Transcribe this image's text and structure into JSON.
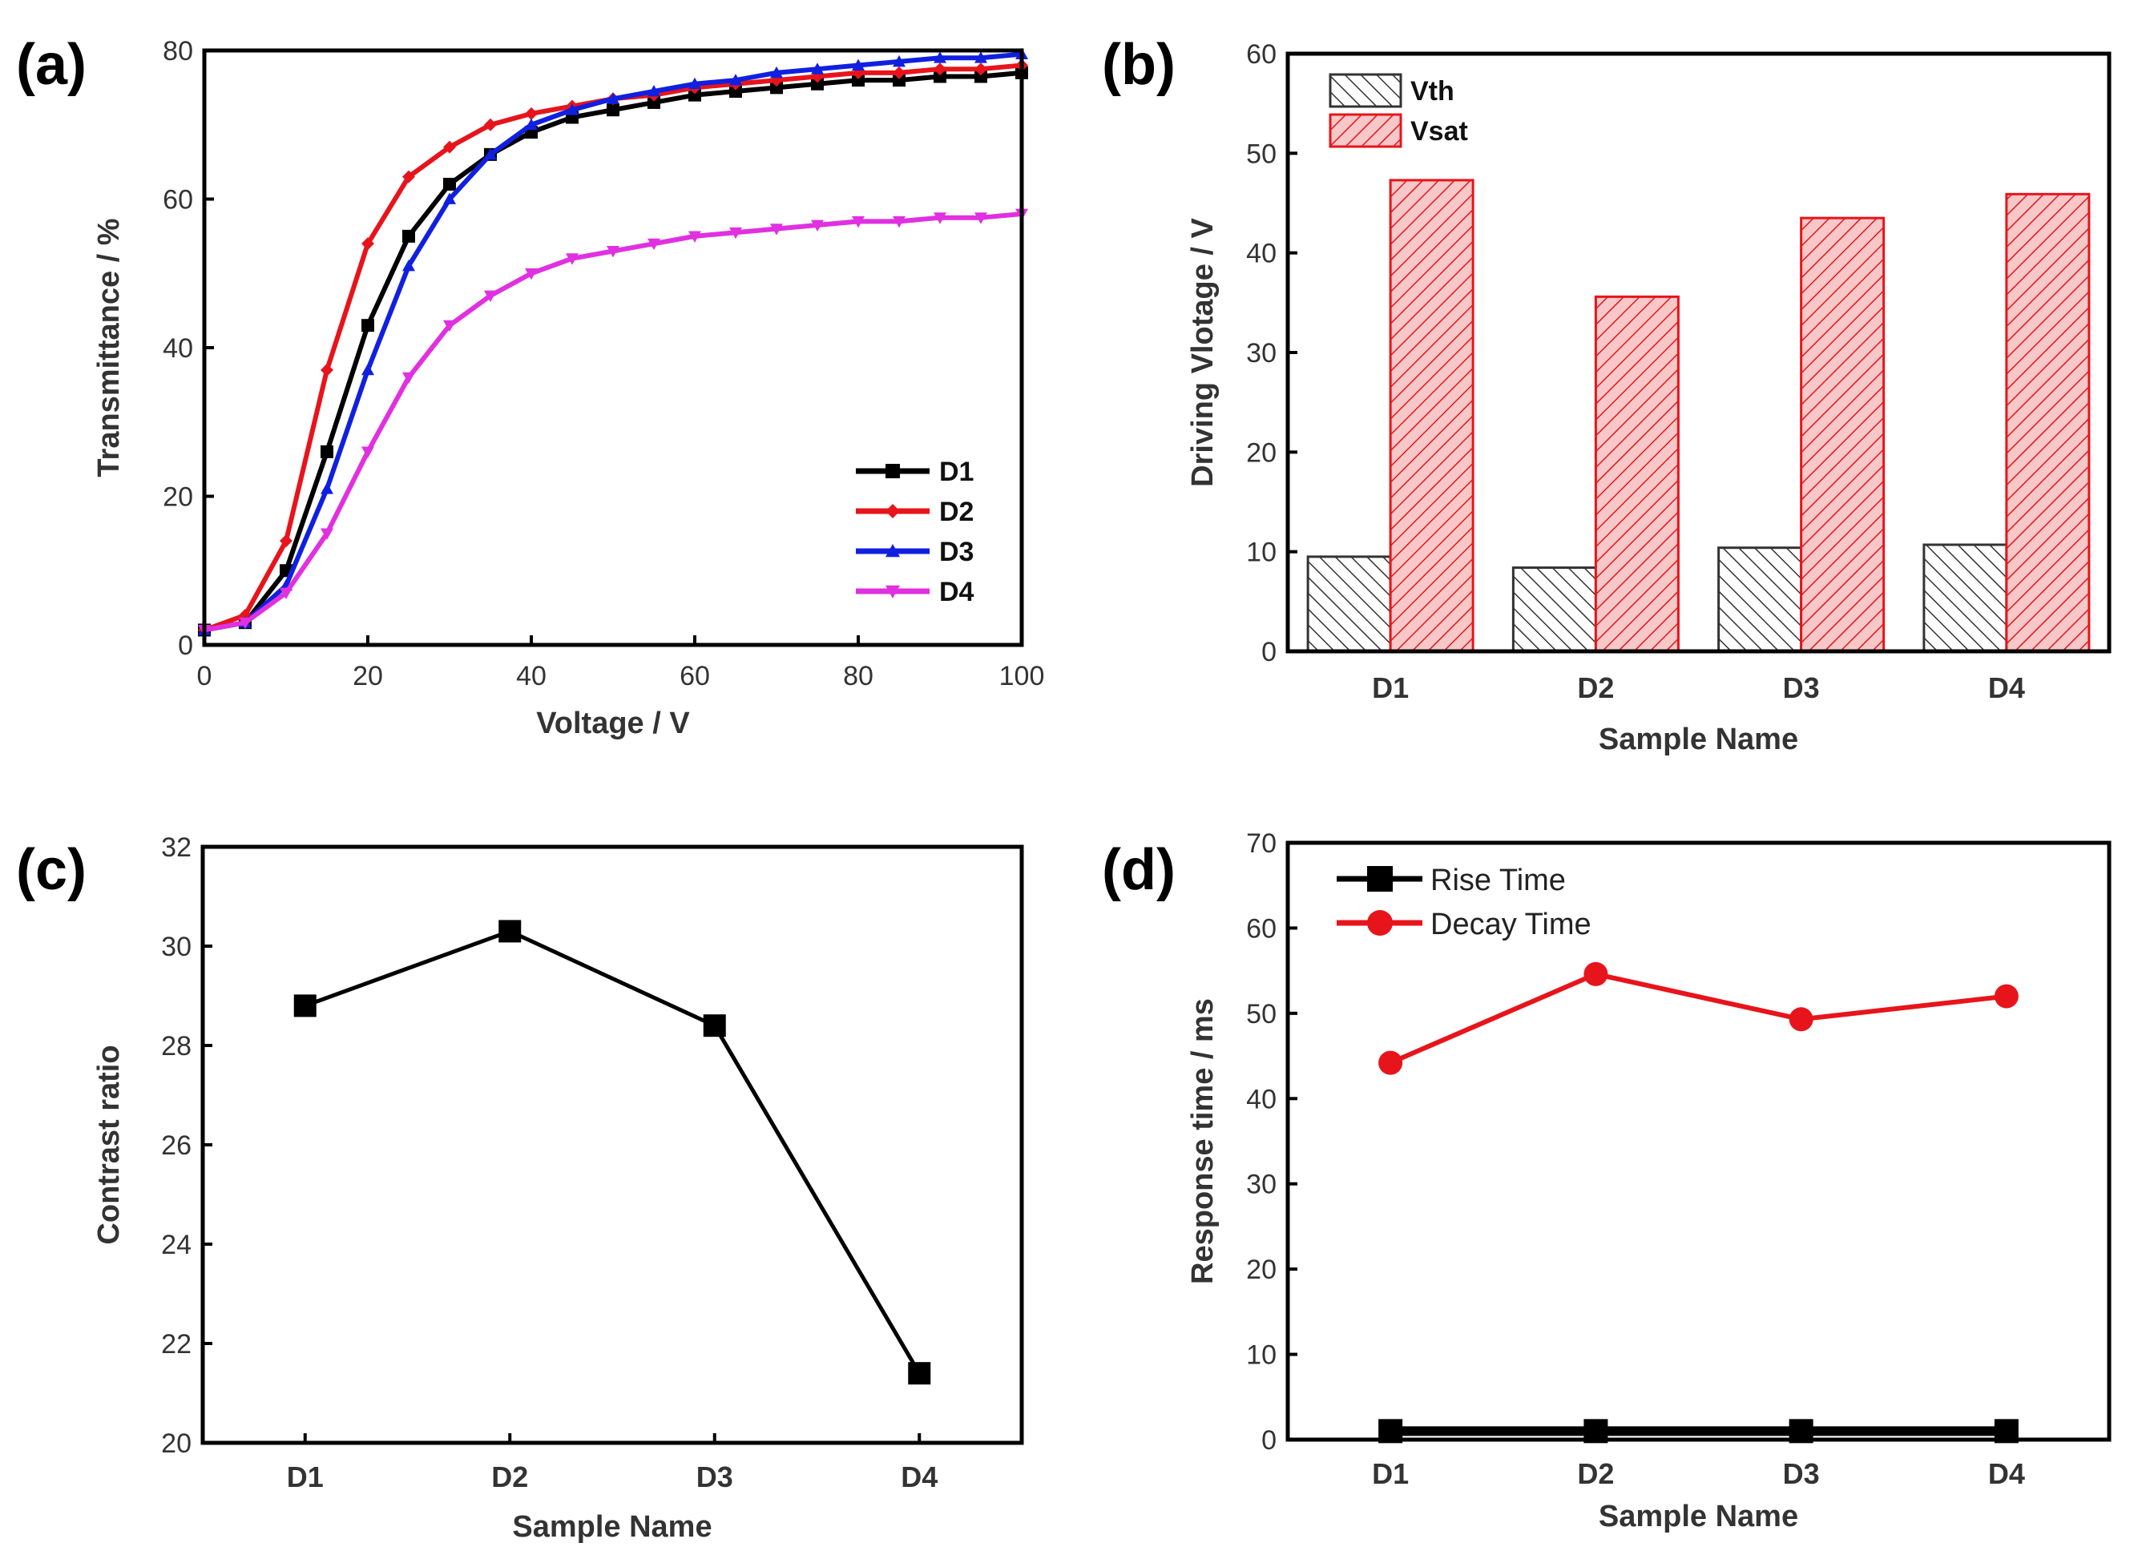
{
  "chart_data": [
    {
      "panel": "(a)",
      "type": "line",
      "xlabel": "Voltage / V",
      "ylabel": "Transmittance / %",
      "xlim": [
        0,
        100
      ],
      "ylim": [
        0,
        80
      ],
      "xticks": [
        0,
        20,
        40,
        60,
        80,
        100
      ],
      "yticks": [
        0,
        20,
        40,
        60,
        80
      ],
      "legend_position": "bottom-right",
      "x": [
        0,
        5,
        10,
        15,
        20,
        25,
        30,
        35,
        40,
        45,
        50,
        55,
        60,
        65,
        70,
        75,
        80,
        85,
        90,
        95,
        100
      ],
      "series": [
        {
          "name": "D1",
          "color": "#000000",
          "marker": "square",
          "values": [
            2,
            3,
            10,
            26,
            43,
            55,
            62,
            66,
            69,
            71,
            72,
            73,
            74,
            74.5,
            75,
            75.5,
            76,
            76,
            76.5,
            76.5,
            77
          ]
        },
        {
          "name": "D2",
          "color": "#e8141b",
          "marker": "diamond",
          "values": [
            2,
            4,
            14,
            37,
            54,
            63,
            67,
            70,
            71.5,
            72.5,
            73.5,
            74,
            75,
            75.5,
            76,
            76.5,
            77,
            77,
            77.5,
            77.5,
            78
          ]
        },
        {
          "name": "D3",
          "color": "#1020e0",
          "marker": "triangle",
          "values": [
            2,
            3,
            8,
            21,
            37,
            51,
            60,
            66,
            70,
            72,
            73.5,
            74.5,
            75.5,
            76,
            77,
            77.5,
            78,
            78.5,
            79,
            79,
            79.5
          ]
        },
        {
          "name": "D4",
          "color": "#e030e0",
          "marker": "triangle-down",
          "values": [
            2,
            3,
            7,
            15,
            26,
            36,
            43,
            47,
            50,
            52,
            53,
            54,
            55,
            55.5,
            56,
            56.5,
            57,
            57,
            57.5,
            57.5,
            58
          ]
        }
      ]
    },
    {
      "panel": "(b)",
      "type": "bar",
      "xlabel": "Sample Name",
      "ylabel": "Driving Vlotage / V",
      "categories": [
        "D1",
        "D2",
        "D3",
        "D4"
      ],
      "ylim": [
        0,
        60
      ],
      "yticks": [
        0,
        10,
        20,
        30,
        40,
        50,
        60
      ],
      "legend_position": "top-left",
      "series": [
        {
          "name": "Vth",
          "color": "#333333",
          "fill": "#ffffff",
          "values": [
            9.5,
            8.4,
            10.4,
            10.7
          ]
        },
        {
          "name": "Vsat",
          "color": "#e8141b",
          "fill": "#f5b8b8",
          "values": [
            47.3,
            35.6,
            43.5,
            45.9
          ]
        }
      ]
    },
    {
      "panel": "(c)",
      "type": "line",
      "xlabel": "Sample Name",
      "ylabel": "Contrast ratio",
      "categories": [
        "D1",
        "D2",
        "D3",
        "D4"
      ],
      "ylim": [
        20,
        32
      ],
      "yticks": [
        20,
        22,
        24,
        26,
        28,
        30,
        32
      ],
      "series": [
        {
          "name": "",
          "color": "#000000",
          "marker": "square",
          "values": [
            28.8,
            30.3,
            28.4,
            21.4
          ]
        }
      ]
    },
    {
      "panel": "(d)",
      "type": "line",
      "xlabel": "Sample Name",
      "ylabel": "Response time / ms",
      "categories": [
        "D1",
        "D2",
        "D3",
        "D4"
      ],
      "ylim": [
        0,
        70
      ],
      "yticks": [
        0,
        10,
        20,
        30,
        40,
        50,
        60,
        70
      ],
      "legend_position": "top-left",
      "series": [
        {
          "name": "Rise Time",
          "color": "#000000",
          "marker": "square",
          "values": [
            1,
            1,
            1,
            1
          ]
        },
        {
          "name": "Decay Time",
          "color": "#e8141b",
          "marker": "circle",
          "values": [
            44.2,
            54.6,
            49.3,
            52
          ]
        }
      ]
    }
  ]
}
